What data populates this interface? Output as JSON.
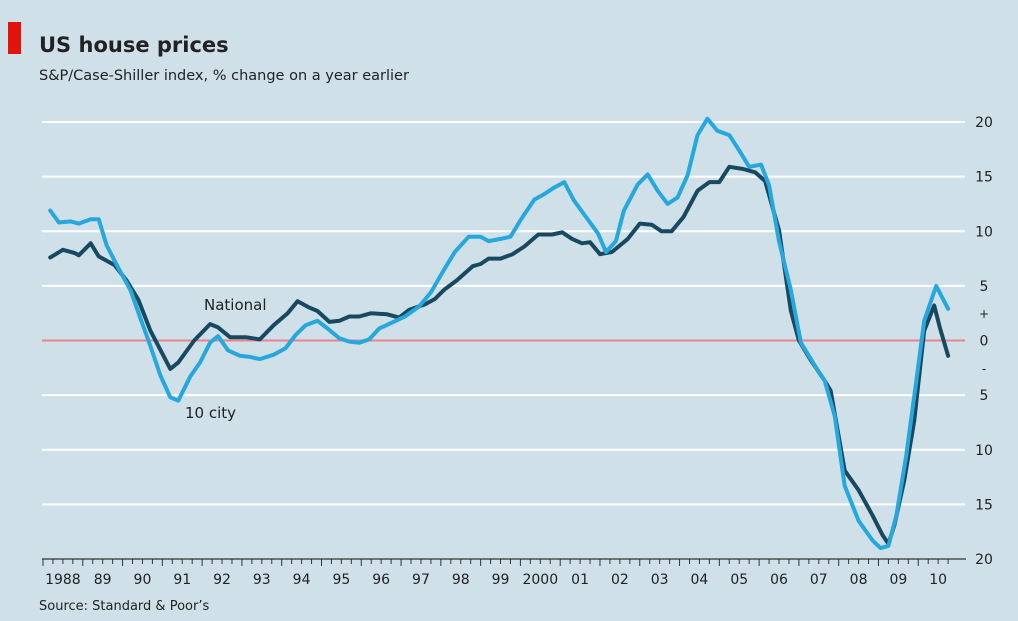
{
  "chart_data": {
    "type": "line",
    "title": "US house prices",
    "subtitle": "S&P/Case-Shiller index, % change on a year earlier",
    "source": "Source: Standard & Poor’s",
    "xlim": [
      1988,
      2011.2
    ],
    "xticks": [
      1988,
      {
        "value": 1989,
        "label": "89"
      },
      {
        "value": 1990,
        "label": "90"
      },
      {
        "value": 1991,
        "label": "91"
      },
      {
        "value": 1992,
        "label": "92"
      },
      {
        "value": 1993,
        "label": "93"
      },
      {
        "value": 1994,
        "label": "94"
      },
      {
        "value": 1995,
        "label": "95"
      },
      {
        "value": 1996,
        "label": "96"
      },
      {
        "value": 1997,
        "label": "97"
      },
      {
        "value": 1998,
        "label": "98"
      },
      {
        "value": 1999,
        "label": "99"
      },
      2000,
      {
        "value": 2001,
        "label": "01"
      },
      {
        "value": 2002,
        "label": "02"
      },
      {
        "value": 2003,
        "label": "03"
      },
      {
        "value": 2004,
        "label": "04"
      },
      {
        "value": 2005,
        "label": "05"
      },
      {
        "value": 2006,
        "label": "06"
      },
      {
        "value": 2007,
        "label": "07"
      },
      {
        "value": 2008,
        "label": "08"
      },
      {
        "value": 2009,
        "label": "09"
      },
      {
        "value": 2010,
        "label": "10"
      }
    ],
    "ylim": [
      -20,
      20
    ],
    "yticks": [
      20,
      15,
      10,
      5,
      {
        "value": 2.5,
        "label": "+"
      },
      0,
      {
        "value": -2.5,
        "label": "-"
      },
      {
        "value": -5,
        "label": "5"
      },
      {
        "value": -10,
        "label": "10"
      },
      {
        "value": -15,
        "label": "15"
      },
      {
        "value": -20,
        "label": "20"
      }
    ],
    "grid": true,
    "grid_color": "#ffffff",
    "zero_line_color": "#e8848c",
    "background": "#cfe0e8",
    "series": [
      {
        "name": "National",
        "color": "#174a60",
        "x": [
          1988.18,
          1988.5,
          1988.8,
          1988.9,
          1989.2,
          1989.4,
          1989.8,
          1990.1,
          1990.4,
          1990.7,
          1991.2,
          1991.4,
          1991.8,
          1992.2,
          1992.4,
          1992.7,
          1993.1,
          1993.45,
          1993.8,
          1994.15,
          1994.4,
          1994.7,
          1994.9,
          1995.2,
          1995.45,
          1995.7,
          1995.95,
          1996.25,
          1996.65,
          1996.95,
          1997.2,
          1997.6,
          1997.85,
          1998.1,
          1998.4,
          1998.8,
          1999.0,
          1999.2,
          1999.5,
          1999.8,
          2000.1,
          2000.45,
          2000.8,
          2001.05,
          2001.3,
          2001.55,
          2001.75,
          2002.0,
          2002.3,
          2002.7,
          2003.0,
          2003.3,
          2003.55,
          2003.8,
          2004.1,
          2004.45,
          2004.75,
          2005.0,
          2005.25,
          2005.6,
          2005.9,
          2006.15,
          2006.5,
          2006.8,
          2007.0,
          2007.3,
          2007.65,
          2007.8,
          2008.15,
          2008.5,
          2008.85,
          2009.1,
          2009.25,
          2009.4,
          2009.65,
          2009.9,
          2010.15,
          2010.4,
          2010.55,
          2010.75
        ],
        "values": [
          7.6,
          8.3,
          8.0,
          7.8,
          8.9,
          7.7,
          6.9,
          5.5,
          3.7,
          0.9,
          -2.6,
          -2.0,
          0,
          1.5,
          1.2,
          0.3,
          0.3,
          0.1,
          1.4,
          2.5,
          3.6,
          3.0,
          2.7,
          1.7,
          1.8,
          2.2,
          2.2,
          2.5,
          2.4,
          2.1,
          2.8,
          3.3,
          3.8,
          4.7,
          5.5,
          6.8,
          7.0,
          7.5,
          7.5,
          7.9,
          8.6,
          9.7,
          9.7,
          9.9,
          9.3,
          8.9,
          9.0,
          7.9,
          8.1,
          9.3,
          10.7,
          10.6,
          10.0,
          10.0,
          11.3,
          13.7,
          14.5,
          14.5,
          15.9,
          15.7,
          15.4,
          14.6,
          10.1,
          2.7,
          0,
          -1.8,
          -3.7,
          -4.6,
          -11.9,
          -13.7,
          -16.0,
          -17.8,
          -18.6,
          -16.9,
          -12.8,
          -7.3,
          0.9,
          3.2,
          1.1,
          -1.4
        ]
      },
      {
        "name": "10 city",
        "color": "#27a8dc",
        "x": [
          1988.18,
          1988.4,
          1988.7,
          1988.9,
          1989.2,
          1989.4,
          1989.6,
          1989.9,
          1990.2,
          1990.45,
          1990.7,
          1990.95,
          1991.2,
          1991.4,
          1991.7,
          1991.95,
          1992.2,
          1992.4,
          1992.65,
          1992.95,
          1993.2,
          1993.45,
          1993.8,
          1994.1,
          1994.35,
          1994.6,
          1994.9,
          1995.15,
          1995.45,
          1995.7,
          1995.95,
          1996.2,
          1996.45,
          1996.75,
          1997.1,
          1997.45,
          1997.75,
          1998.1,
          1998.35,
          1998.7,
          1999.0,
          1999.2,
          1999.5,
          1999.75,
          2000.0,
          2000.35,
          2000.6,
          2000.85,
          2001.1,
          2001.35,
          2001.75,
          2001.95,
          2002.15,
          2002.4,
          2002.6,
          2002.95,
          2003.2,
          2003.45,
          2003.7,
          2003.95,
          2004.2,
          2004.45,
          2004.7,
          2004.95,
          2005.25,
          2005.5,
          2005.75,
          2006.05,
          2006.25,
          2006.5,
          2006.8,
          2007.05,
          2007.4,
          2007.65,
          2007.9,
          2008.15,
          2008.5,
          2008.85,
          2009.05,
          2009.25,
          2009.45,
          2009.7,
          2009.95,
          2010.15,
          2010.45,
          2010.75
        ],
        "values": [
          11.9,
          10.8,
          10.9,
          10.7,
          11.1,
          11.1,
          8.7,
          6.6,
          4.6,
          2.0,
          -0.5,
          -3.2,
          -5.2,
          -5.5,
          -3.3,
          -2.0,
          -0.2,
          0.4,
          -0.9,
          -1.4,
          -1.5,
          -1.7,
          -1.3,
          -0.7,
          0.5,
          1.4,
          1.8,
          1.1,
          0.2,
          -0.1,
          -0.2,
          0.1,
          1.1,
          1.6,
          2.2,
          3.1,
          4.4,
          6.6,
          8.1,
          9.5,
          9.5,
          9.1,
          9.3,
          9.5,
          11.0,
          12.9,
          13.4,
          14.0,
          14.5,
          12.8,
          10.8,
          9.8,
          8.1,
          9.1,
          11.9,
          14.3,
          15.2,
          13.7,
          12.5,
          13.1,
          15.1,
          18.8,
          20.3,
          19.2,
          18.8,
          17.4,
          15.9,
          16.1,
          14.2,
          9.1,
          4.6,
          -0.2,
          -2.3,
          -3.7,
          -6.9,
          -13.3,
          -16.5,
          -18.3,
          -19.0,
          -18.8,
          -16.0,
          -10.5,
          -3.7,
          1.8,
          5.0,
          2.9
        ]
      }
    ]
  }
}
